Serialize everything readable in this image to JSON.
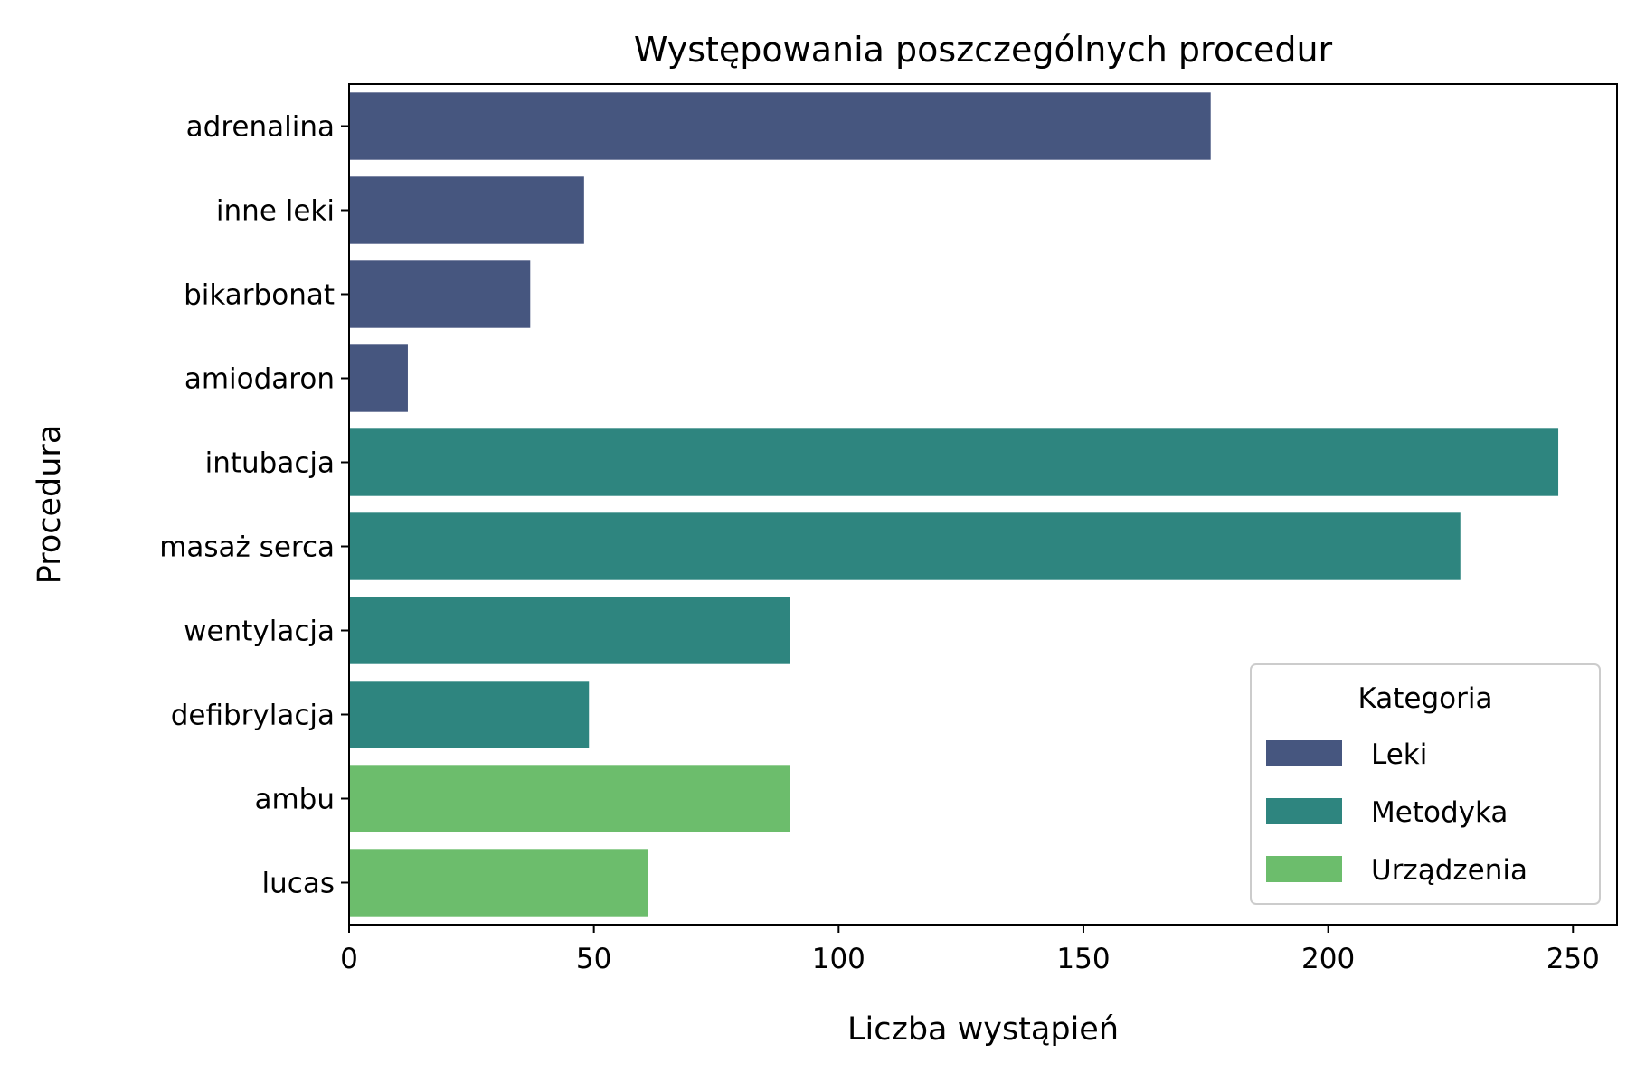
{
  "chart_data": {
    "type": "bar",
    "orientation": "horizontal",
    "title": "Występowania poszczególnych procedur",
    "xlabel": "Liczba wystąpień",
    "ylabel": "Procedura",
    "xlim": [
      0,
      259
    ],
    "xticks": [
      0,
      50,
      100,
      150,
      200,
      250
    ],
    "grid": false,
    "categories": [
      "adrenalina",
      "inne leki",
      "bikarbonat",
      "amiodaron",
      "intubacja",
      "masaż serca",
      "wentylacja",
      "defibrylacja",
      "ambu",
      "lucas"
    ],
    "values": [
      176,
      48,
      37,
      12,
      247,
      227,
      90,
      49,
      90,
      61
    ],
    "category_group": [
      "Leki",
      "Leki",
      "Leki",
      "Leki",
      "Metodyka",
      "Metodyka",
      "Metodyka",
      "Metodyka",
      "Urządzenia",
      "Urządzenia"
    ],
    "legend": {
      "title": "Kategoria",
      "placement": "lower-right",
      "entries": [
        {
          "name": "Leki",
          "color": "#46567f"
        },
        {
          "name": "Metodyka",
          "color": "#2e857f"
        },
        {
          "name": "Urządzenia",
          "color": "#6cbd6c"
        }
      ]
    }
  }
}
